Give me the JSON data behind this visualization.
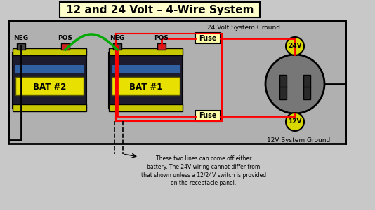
{
  "title": "12 and 24 Volt – 4-Wire System",
  "bg_color": "#c8c8c8",
  "diagram_bg": "#b0b0b0",
  "title_bg": "#ffffcc",
  "title_fontsize": 11,
  "annotation_text": "These two lines can come off either\nbattery. The 24V wiring cannot differ from\nthat shown unless a 12/24V switch is provided\non the receptacle panel.",
  "ground_top_text": "24 Volt System Ground",
  "ground_bot_text": "12V System Ground",
  "bat2_label": "BAT #2",
  "bat1_label": "BAT #1",
  "fuse_top_text": "Fuse",
  "fuse_bot_text": "Fuse",
  "neg_left_text": "NEG",
  "pos_left_text": "POS",
  "neg_right_text": "NEG",
  "pos_right_text": "POS",
  "volt_24_text": "24V",
  "volt_12_text": "12V"
}
